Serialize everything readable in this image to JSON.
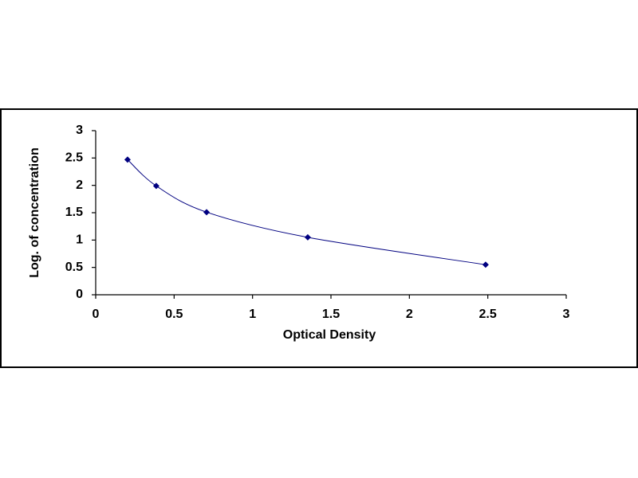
{
  "chart_data": {
    "type": "line",
    "smooth": true,
    "markers": "diamond",
    "x_label": "Optical Density",
    "y_label": "Log. of concentration",
    "x": [
      0.203,
      0.386,
      0.707,
      1.352,
      2.486
    ],
    "series": [
      {
        "color": "#000080",
        "values": [
          2.47,
          1.99,
          1.51,
          1.05,
          0.55
        ]
      }
    ],
    "xlim": [
      0,
      3
    ],
    "xticks": [
      0,
      0.5,
      1,
      1.5,
      2,
      2.5,
      3
    ],
    "ylim": [
      0,
      3
    ],
    "yticks": [
      0,
      0.5,
      1,
      1.5,
      2,
      2.5,
      3
    ],
    "grid": false
  }
}
